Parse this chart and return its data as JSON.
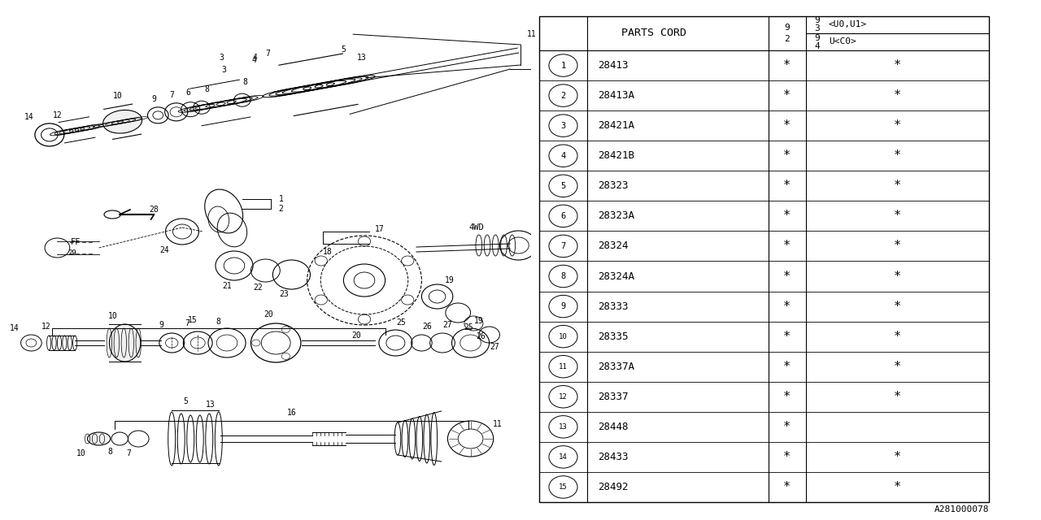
{
  "rows": [
    {
      "num": "1",
      "code": "28413",
      "c1": true,
      "c2": true
    },
    {
      "num": "2",
      "code": "28413A",
      "c1": true,
      "c2": true
    },
    {
      "num": "3",
      "code": "28421A",
      "c1": true,
      "c2": true
    },
    {
      "num": "4",
      "code": "28421B",
      "c1": true,
      "c2": true
    },
    {
      "num": "5",
      "code": "28323",
      "c1": true,
      "c2": true
    },
    {
      "num": "6",
      "code": "28323A",
      "c1": true,
      "c2": true
    },
    {
      "num": "7",
      "code": "28324",
      "c1": true,
      "c2": true
    },
    {
      "num": "8",
      "code": "28324A",
      "c1": true,
      "c2": true
    },
    {
      "num": "9",
      "code": "28333",
      "c1": true,
      "c2": true
    },
    {
      "num": "10",
      "code": "28335",
      "c1": true,
      "c2": true
    },
    {
      "num": "11",
      "code": "28337A",
      "c1": true,
      "c2": true
    },
    {
      "num": "12",
      "code": "28337",
      "c1": true,
      "c2": true
    },
    {
      "num": "13",
      "code": "28448",
      "c1": true,
      "c2": false
    },
    {
      "num": "14",
      "code": "28433",
      "c1": true,
      "c2": true
    },
    {
      "num": "15",
      "code": "28492",
      "c1": true,
      "c2": true
    }
  ],
  "ref_code": "A281000078",
  "bg_color": "#ffffff"
}
